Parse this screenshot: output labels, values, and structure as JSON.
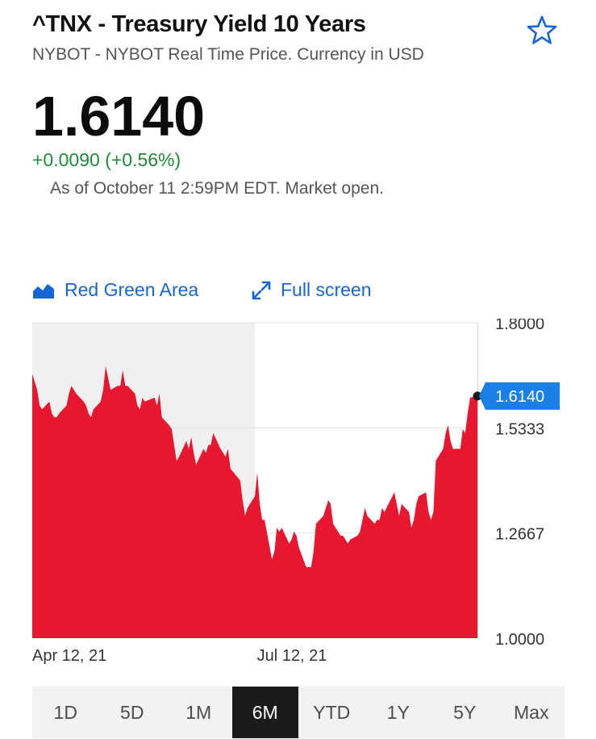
{
  "header": {
    "title": "^TNX - Treasury Yield 10 Years",
    "subtitle": "NYBOT - NYBOT Real Time Price. Currency in USD",
    "favorite_icon": "star-outline-icon"
  },
  "quote": {
    "price": "1.6140",
    "change": "+0.0090 (+0.56%)",
    "as_of": "As of October 11 2:59PM EDT. Market open."
  },
  "toolbar": {
    "chart_type_label": "Red Green Area",
    "chart_type_icon": "area-chart-icon",
    "fullscreen_label": "Full screen",
    "fullscreen_icon": "expand-arrows-icon"
  },
  "colors": {
    "accent": "#1666d8",
    "positive": "#1f8a39",
    "area_fill": "#e8162e",
    "current_badge": "#1a7fe6"
  },
  "chart_data": {
    "type": "area",
    "ylim": [
      1.0,
      1.8
    ],
    "y_ticks": [
      "1.8000",
      "1.5333",
      "1.2667",
      "1.0000"
    ],
    "x_tick_labels": [
      "Apr 12, 21",
      "Jul 12, 21"
    ],
    "current_value_label": "1.6140",
    "current_value": 1.614,
    "dates": [
      "2021-04-12",
      "2021-04-13",
      "2021-04-14",
      "2021-04-15",
      "2021-04-16",
      "2021-04-19",
      "2021-04-20",
      "2021-04-21",
      "2021-04-22",
      "2021-04-23",
      "2021-04-26",
      "2021-04-27",
      "2021-04-28",
      "2021-04-29",
      "2021-04-30",
      "2021-05-03",
      "2021-05-04",
      "2021-05-05",
      "2021-05-06",
      "2021-05-07",
      "2021-05-10",
      "2021-05-11",
      "2021-05-12",
      "2021-05-13",
      "2021-05-14",
      "2021-05-17",
      "2021-05-18",
      "2021-05-19",
      "2021-05-20",
      "2021-05-21",
      "2021-05-24",
      "2021-05-25",
      "2021-05-26",
      "2021-05-27",
      "2021-05-28",
      "2021-06-01",
      "2021-06-02",
      "2021-06-03",
      "2021-06-04",
      "2021-06-07",
      "2021-06-08",
      "2021-06-09",
      "2021-06-10",
      "2021-06-11",
      "2021-06-14",
      "2021-06-15",
      "2021-06-16",
      "2021-06-17",
      "2021-06-18",
      "2021-06-21",
      "2021-06-22",
      "2021-06-23",
      "2021-06-24",
      "2021-06-25",
      "2021-06-28",
      "2021-06-29",
      "2021-06-30",
      "2021-07-01",
      "2021-07-02",
      "2021-07-06",
      "2021-07-07",
      "2021-07-08",
      "2021-07-09",
      "2021-07-12",
      "2021-07-13",
      "2021-07-14",
      "2021-07-15",
      "2021-07-16",
      "2021-07-19",
      "2021-07-20",
      "2021-07-21",
      "2021-07-22",
      "2021-07-23",
      "2021-07-26",
      "2021-07-27",
      "2021-07-28",
      "2021-07-29",
      "2021-07-30",
      "2021-08-02",
      "2021-08-03",
      "2021-08-04",
      "2021-08-05",
      "2021-08-06",
      "2021-08-09",
      "2021-08-10",
      "2021-08-11",
      "2021-08-12",
      "2021-08-13",
      "2021-08-16",
      "2021-08-17",
      "2021-08-18",
      "2021-08-19",
      "2021-08-20",
      "2021-08-23",
      "2021-08-24",
      "2021-08-25",
      "2021-08-26",
      "2021-08-27",
      "2021-08-30",
      "2021-08-31",
      "2021-09-01",
      "2021-09-02",
      "2021-09-03",
      "2021-09-07",
      "2021-09-08",
      "2021-09-09",
      "2021-09-10",
      "2021-09-13",
      "2021-09-14",
      "2021-09-15",
      "2021-09-16",
      "2021-09-17",
      "2021-09-20",
      "2021-09-21",
      "2021-09-22",
      "2021-09-23",
      "2021-09-24",
      "2021-09-27",
      "2021-09-28",
      "2021-09-29",
      "2021-09-30",
      "2021-10-01",
      "2021-10-04",
      "2021-10-05",
      "2021-10-06",
      "2021-10-07",
      "2021-10-08",
      "2021-10-11"
    ],
    "values": [
      1.67,
      1.65,
      1.63,
      1.59,
      1.58,
      1.6,
      1.57,
      1.56,
      1.56,
      1.57,
      1.59,
      1.62,
      1.64,
      1.63,
      1.62,
      1.6,
      1.59,
      1.57,
      1.56,
      1.58,
      1.6,
      1.63,
      1.69,
      1.66,
      1.63,
      1.64,
      1.64,
      1.68,
      1.64,
      1.64,
      1.62,
      1.59,
      1.58,
      1.61,
      1.6,
      1.61,
      1.59,
      1.62,
      1.56,
      1.54,
      1.53,
      1.49,
      1.45,
      1.46,
      1.5,
      1.48,
      1.51,
      1.47,
      1.44,
      1.48,
      1.47,
      1.49,
      1.49,
      1.52,
      1.48,
      1.47,
      1.46,
      1.48,
      1.43,
      1.4,
      1.35,
      1.31,
      1.33,
      1.36,
      1.42,
      1.34,
      1.3,
      1.3,
      1.2,
      1.22,
      1.28,
      1.27,
      1.28,
      1.24,
      1.25,
      1.27,
      1.26,
      1.23,
      1.18,
      1.18,
      1.18,
      1.22,
      1.29,
      1.31,
      1.33,
      1.35,
      1.34,
      1.29,
      1.26,
      1.26,
      1.25,
      1.24,
      1.25,
      1.26,
      1.27,
      1.3,
      1.33,
      1.31,
      1.29,
      1.3,
      1.3,
      1.33,
      1.32,
      1.37,
      1.34,
      1.31,
      1.34,
      1.32,
      1.28,
      1.3,
      1.34,
      1.36,
      1.37,
      1.32,
      1.3,
      1.32,
      1.45,
      1.48,
      1.52,
      1.54,
      1.5,
      1.48,
      1.48,
      1.53,
      1.52,
      1.57,
      1.61,
      1.614
    ]
  },
  "ranges": [
    "1D",
    "5D",
    "1M",
    "6M",
    "YTD",
    "1Y",
    "5Y",
    "Max"
  ],
  "active_range": "6M"
}
